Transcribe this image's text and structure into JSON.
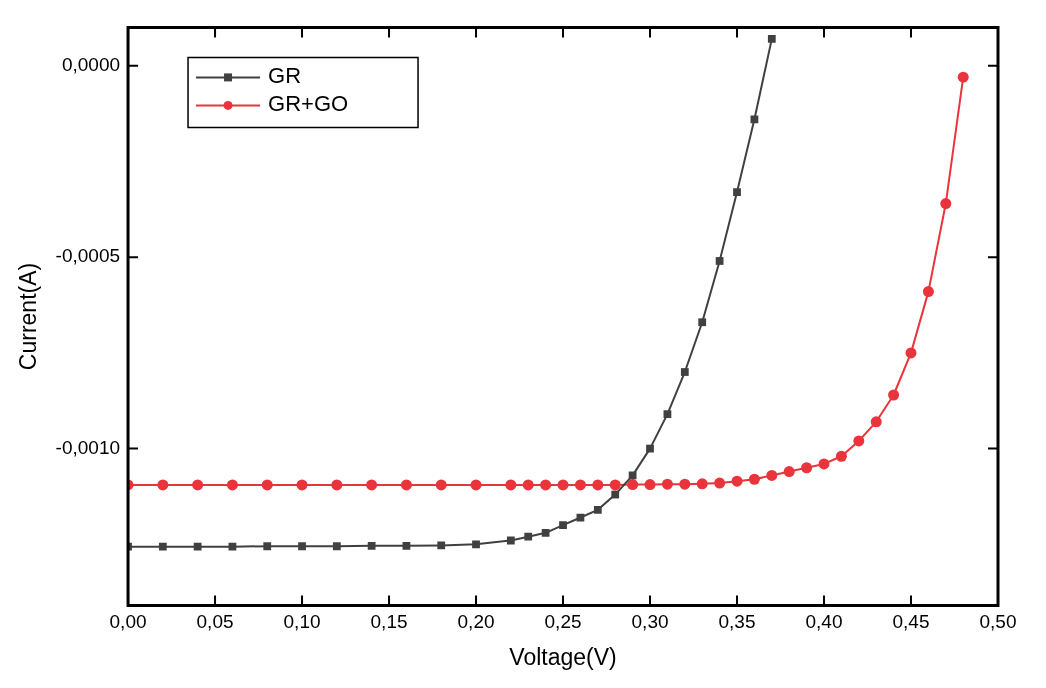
{
  "chart_data": {
    "type": "line",
    "xlabel": "Voltage(V)",
    "ylabel": "Current(A)",
    "xlim": [
      0,
      0.5
    ],
    "ylim": [
      -0.00141,
      0.0001
    ],
    "xticks": [
      {
        "value": 0,
        "label": "0,00"
      },
      {
        "value": 0.05,
        "label": "0,05"
      },
      {
        "value": 0.1,
        "label": "0,10"
      },
      {
        "value": 0.15,
        "label": "0,15"
      },
      {
        "value": 0.2,
        "label": "0,20"
      },
      {
        "value": 0.25,
        "label": "0,25"
      },
      {
        "value": 0.3,
        "label": "0,30"
      },
      {
        "value": 0.35,
        "label": "0,35"
      },
      {
        "value": 0.4,
        "label": "0,40"
      },
      {
        "value": 0.45,
        "label": "0,45"
      },
      {
        "value": 0.5,
        "label": "0,50"
      }
    ],
    "yticks": [
      {
        "value": -0.001,
        "label": "-0,0010"
      },
      {
        "value": -0.0005,
        "label": "-0,0005"
      },
      {
        "value": 0,
        "label": "0,0000"
      }
    ],
    "grid": false,
    "legend": "top left",
    "series": [
      {
        "name": "GR",
        "color": "#404040",
        "marker": "square",
        "x": [
          0,
          0.02,
          0.04,
          0.06,
          0.08,
          0.1,
          0.12,
          0.14,
          0.16,
          0.18,
          0.2,
          0.22,
          0.23,
          0.24,
          0.25,
          0.26,
          0.27,
          0.28,
          0.29,
          0.3,
          0.31,
          0.32,
          0.33,
          0.34,
          0.35,
          0.36,
          0.37
        ],
        "values": [
          -0.001256,
          -0.001256,
          -0.001256,
          -0.001256,
          -0.001255,
          -0.001255,
          -0.001255,
          -0.001254,
          -0.001254,
          -0.001253,
          -0.00125,
          -0.00124,
          -0.00123,
          -0.00122,
          -0.0012,
          -0.00118,
          -0.00116,
          -0.00112,
          -0.00107,
          -0.001,
          -0.00091,
          -0.0008,
          -0.00067,
          -0.00051,
          -0.00033,
          -0.00014,
          7e-05
        ]
      },
      {
        "name": "GR+GO",
        "color": "#e8343a",
        "marker": "circle",
        "x": [
          0,
          0.02,
          0.04,
          0.06,
          0.08,
          0.1,
          0.12,
          0.14,
          0.16,
          0.18,
          0.2,
          0.22,
          0.23,
          0.24,
          0.25,
          0.26,
          0.27,
          0.28,
          0.29,
          0.3,
          0.31,
          0.32,
          0.33,
          0.34,
          0.35,
          0.36,
          0.37,
          0.38,
          0.39,
          0.4,
          0.41,
          0.42,
          0.43,
          0.44,
          0.45,
          0.46,
          0.47,
          0.48
        ],
        "values": [
          -0.001095,
          -0.001095,
          -0.001095,
          -0.001095,
          -0.001095,
          -0.001095,
          -0.001095,
          -0.001095,
          -0.001095,
          -0.001095,
          -0.001095,
          -0.001095,
          -0.001095,
          -0.001095,
          -0.001095,
          -0.001095,
          -0.001095,
          -0.001095,
          -0.001094,
          -0.001094,
          -0.001093,
          -0.001093,
          -0.001092,
          -0.00109,
          -0.001085,
          -0.00108,
          -0.00107,
          -0.00106,
          -0.00105,
          -0.00104,
          -0.00102,
          -0.00098,
          -0.00093,
          -0.00086,
          -0.00075,
          -0.00059,
          -0.00036,
          -3e-05
        ]
      }
    ]
  }
}
